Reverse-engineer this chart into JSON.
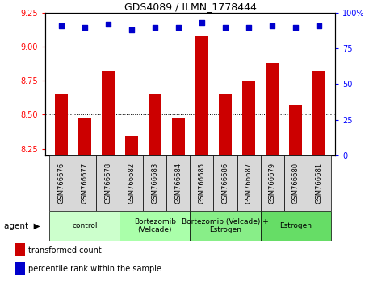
{
  "title": "GDS4089 / ILMN_1778444",
  "samples": [
    "GSM766676",
    "GSM766677",
    "GSM766678",
    "GSM766682",
    "GSM766683",
    "GSM766684",
    "GSM766685",
    "GSM766686",
    "GSM766687",
    "GSM766679",
    "GSM766680",
    "GSM766681"
  ],
  "bar_values": [
    8.65,
    8.47,
    8.82,
    8.34,
    8.65,
    8.47,
    9.08,
    8.65,
    8.75,
    8.88,
    8.57,
    8.82
  ],
  "percentile_values": [
    91,
    90,
    92,
    88,
    90,
    90,
    93,
    90,
    90,
    91,
    90,
    91
  ],
  "bar_color": "#cc0000",
  "percentile_color": "#0000cc",
  "ylim_left": [
    8.2,
    9.25
  ],
  "ylim_right": [
    0,
    100
  ],
  "yticks_left": [
    8.25,
    8.5,
    8.75,
    9.0,
    9.25
  ],
  "yticks_right": [
    0,
    25,
    50,
    75,
    100
  ],
  "ytick_right_labels": [
    "0",
    "25",
    "50",
    "75",
    "100%"
  ],
  "groups": [
    {
      "label": "control",
      "start": 0,
      "end": 3,
      "color": "#ccffcc"
    },
    {
      "label": "Bortezomib\n(Velcade)",
      "start": 3,
      "end": 6,
      "color": "#aaffaa"
    },
    {
      "label": "Bortezomib (Velcade) +\nEstrogen",
      "start": 6,
      "end": 9,
      "color": "#88ee88"
    },
    {
      "label": "Estrogen",
      "start": 9,
      "end": 12,
      "color": "#66dd66"
    }
  ],
  "legend_bar_label": "transformed count",
  "legend_pct_label": "percentile rank within the sample",
  "dotted_grid_yticks": [
    8.5,
    8.75,
    9.0
  ],
  "bar_width": 0.55
}
